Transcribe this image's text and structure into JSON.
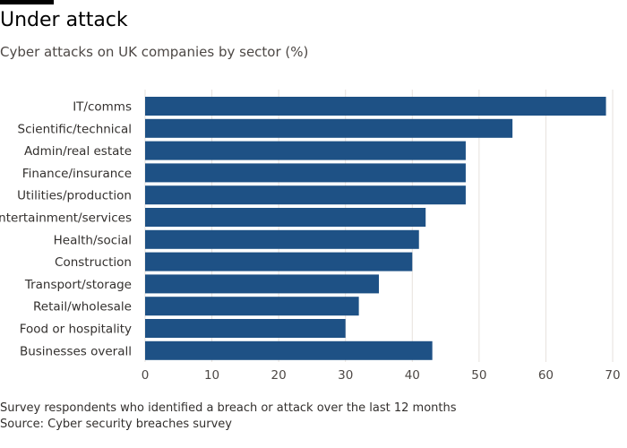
{
  "header": {
    "title": "Under attack",
    "subtitle": "Cyber attacks on UK companies by sector (%)"
  },
  "footer": {
    "note": "Survey respondents who identified a breach or attack over the last 12 months",
    "source": "Source: Cyber security breaches survey"
  },
  "colors": {
    "bar": "#1e5185",
    "grid": "#e6e1dd",
    "axis_text": "#4d4845"
  },
  "chart_data": {
    "type": "bar",
    "orientation": "horizontal",
    "title": "Under attack",
    "subtitle": "Cyber attacks on UK companies by sector (%)",
    "categories": [
      "IT/comms",
      "Scientific/technical",
      "Admin/real estate",
      "Finance/insurance",
      "Utilities/production",
      "Entertainment/services",
      "Health/social",
      "Construction",
      "Transport/storage",
      "Retail/wholesale",
      "Food or hospitality",
      "Businesses overall"
    ],
    "values": [
      69,
      55,
      48,
      48,
      48,
      42,
      41,
      40,
      35,
      32,
      30,
      43
    ],
    "xlim": [
      0,
      70
    ],
    "xticks": [
      0,
      10,
      20,
      30,
      40,
      50,
      60,
      70
    ],
    "xlabel": "",
    "ylabel": "",
    "grid": true
  }
}
